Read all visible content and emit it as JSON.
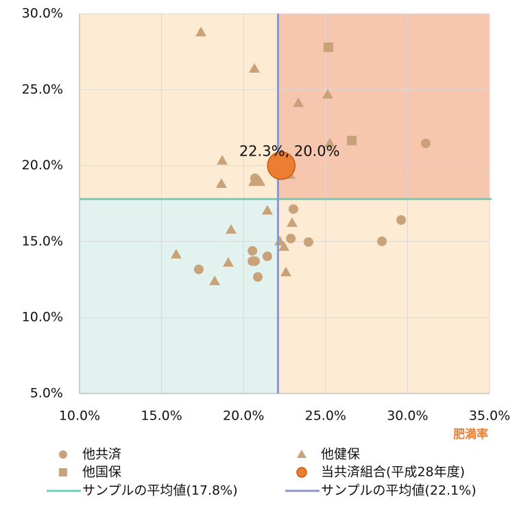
{
  "chart_data": {
    "type": "scatter",
    "x_label": "肥満率",
    "xlim": [
      10,
      35
    ],
    "xticks": [
      {
        "value": 10,
        "label": "10.0%"
      },
      {
        "value": 15,
        "label": "15.0%"
      },
      {
        "value": 20,
        "label": "20.0%"
      },
      {
        "value": 25,
        "label": "25.0%"
      },
      {
        "value": 30,
        "label": "30.0%"
      },
      {
        "value": 35,
        "label": "35.0%"
      }
    ],
    "ylim": [
      5,
      30
    ],
    "yticks": [
      {
        "value": 5,
        "label": "5.0%"
      },
      {
        "value": 10,
        "label": "10.0%"
      },
      {
        "value": 15,
        "label": "15.0%"
      },
      {
        "value": 20,
        "label": "20.0%"
      },
      {
        "value": 25,
        "label": "25.0%"
      },
      {
        "value": 30,
        "label": "30.0%"
      }
    ],
    "grid": true,
    "quadrant_colors": {
      "top_left": "#fdebd3",
      "top_right": "#f6c6ae",
      "bottom_left": "#e2f3ef",
      "bottom_right": "#fdebd3"
    },
    "series": [
      {
        "name": "他共済",
        "marker": "circle",
        "color": "#c9a27a",
        "x": [
          20.7,
          23.04,
          22.88,
          23.96,
          29.61,
          28.44,
          31.11,
          20.54,
          20.54,
          20.7,
          21.45,
          20.87,
          17.27
        ],
        "values": [
          19.17,
          17.14,
          15.2,
          14.97,
          16.42,
          15.02,
          21.47,
          14.39,
          13.71,
          13.71,
          14.03,
          12.67,
          13.17
        ]
      },
      {
        "name": "他健保",
        "marker": "triangle",
        "color": "#c9a27a",
        "x": [
          17.4,
          20.66,
          23.34,
          25.13,
          25.26,
          18.7,
          20.62,
          21.0,
          18.65,
          22.83,
          21.45,
          22.96,
          19.24,
          22.21,
          22.46,
          15.89,
          19.07,
          18.24,
          22.58
        ],
        "values": [
          28.78,
          26.39,
          24.13,
          24.68,
          21.47,
          20.34,
          18.94,
          18.94,
          18.81,
          19.4,
          17.05,
          16.24,
          15.79,
          15.02,
          14.66,
          14.16,
          13.62,
          12.4,
          12.99
        ]
      },
      {
        "name": "他国保",
        "marker": "square",
        "color": "#c9a27a",
        "x": [
          25.17,
          26.6
        ],
        "values": [
          27.79,
          21.65
        ]
      },
      {
        "name": "当共済組合(平成28年度)",
        "marker": "big-circle",
        "color": "#ed7d31",
        "x": [
          22.3
        ],
        "values": [
          20.0
        ],
        "value_labels": [
          "22.3%, 20.0%"
        ]
      }
    ],
    "reference_lines": [
      {
        "name": "サンプルの平均値(17.8%)",
        "axis": "y",
        "value": 17.8,
        "color": "#6fd0b9"
      },
      {
        "name": "サンプルの平均値(22.1%)",
        "axis": "x",
        "value": 22.1,
        "color": "#8c96c8"
      }
    ]
  }
}
